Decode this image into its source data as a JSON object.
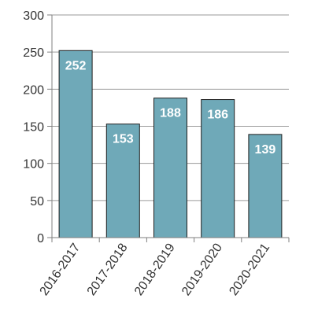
{
  "chart_data": {
    "type": "bar",
    "categories": [
      "2016-2017",
      "2017-2018",
      "2018-2019",
      "2019-2020",
      "2020-2021"
    ],
    "values": [
      252,
      153,
      188,
      186,
      139
    ],
    "data_labels": [
      "252",
      "153",
      "188",
      "186",
      "139"
    ],
    "title": "",
    "xlabel": "",
    "ylabel": "",
    "ylim": [
      0,
      300
    ],
    "yticks": [
      "0",
      "50",
      "100",
      "150",
      "200",
      "250",
      "300"
    ],
    "grid": true,
    "legend": "none",
    "colors": {
      "bar_fill": "#6fa9b8",
      "bar_stroke": "#1f1f1f",
      "grid": "#9a9a9a",
      "axis": "#7f7f7f",
      "label_text": "#ffffff"
    }
  }
}
